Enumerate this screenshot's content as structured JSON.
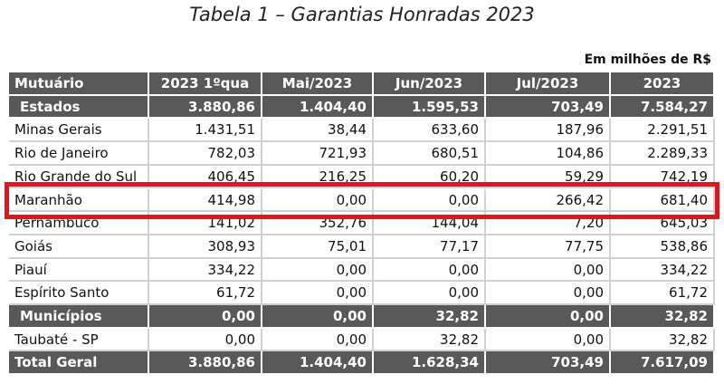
{
  "title": "Tabela 1 – Garantias Honradas 2023",
  "unit_note": "Em milhões de R$",
  "table": {
    "header": [
      "Mutuário",
      "2023 1ºqua",
      "Mai/2023",
      "Jun/2023",
      "Jul/2023",
      "2023"
    ],
    "rows": [
      [
        "Estados",
        "3.880,86",
        "1.404,40",
        "1.595,53",
        "703,49",
        "7.584,27"
      ],
      [
        "Minas Gerais",
        "1.431,51",
        "38,44",
        "633,60",
        "187,96",
        "2.291,51"
      ],
      [
        "Rio de Janeiro",
        "782,03",
        "721,93",
        "680,51",
        "104,86",
        "2.289,33"
      ],
      [
        "Rio Grande do Sul",
        "406,45",
        "216,25",
        "60,20",
        "59,29",
        "742,19"
      ],
      [
        "Maranhão",
        "414,98",
        "0,00",
        "0,00",
        "266,42",
        "681,40"
      ],
      [
        "Pernambuco",
        "141,02",
        "352,76",
        "144,04",
        "7,20",
        "645,03"
      ],
      [
        "Goiás",
        "308,93",
        "75,01",
        "77,17",
        "77,75",
        "538,86"
      ],
      [
        "Piauí",
        "334,22",
        "0,00",
        "0,00",
        "0,00",
        "334,22"
      ],
      [
        "Espírito Santo",
        "61,72",
        "0,00",
        "0,00",
        "0,00",
        "61,72"
      ],
      [
        "Municípios",
        "0,00",
        "0,00",
        "32,82",
        "0,00",
        "32,82"
      ],
      [
        "Taubaté - SP",
        "0,00",
        "0,00",
        "32,82",
        "0,00",
        "32,82"
      ],
      [
        "Total Geral",
        "3.880,86",
        "1.404,40",
        "1.628,34",
        "703,49",
        "7.617,09"
      ]
    ]
  }
}
